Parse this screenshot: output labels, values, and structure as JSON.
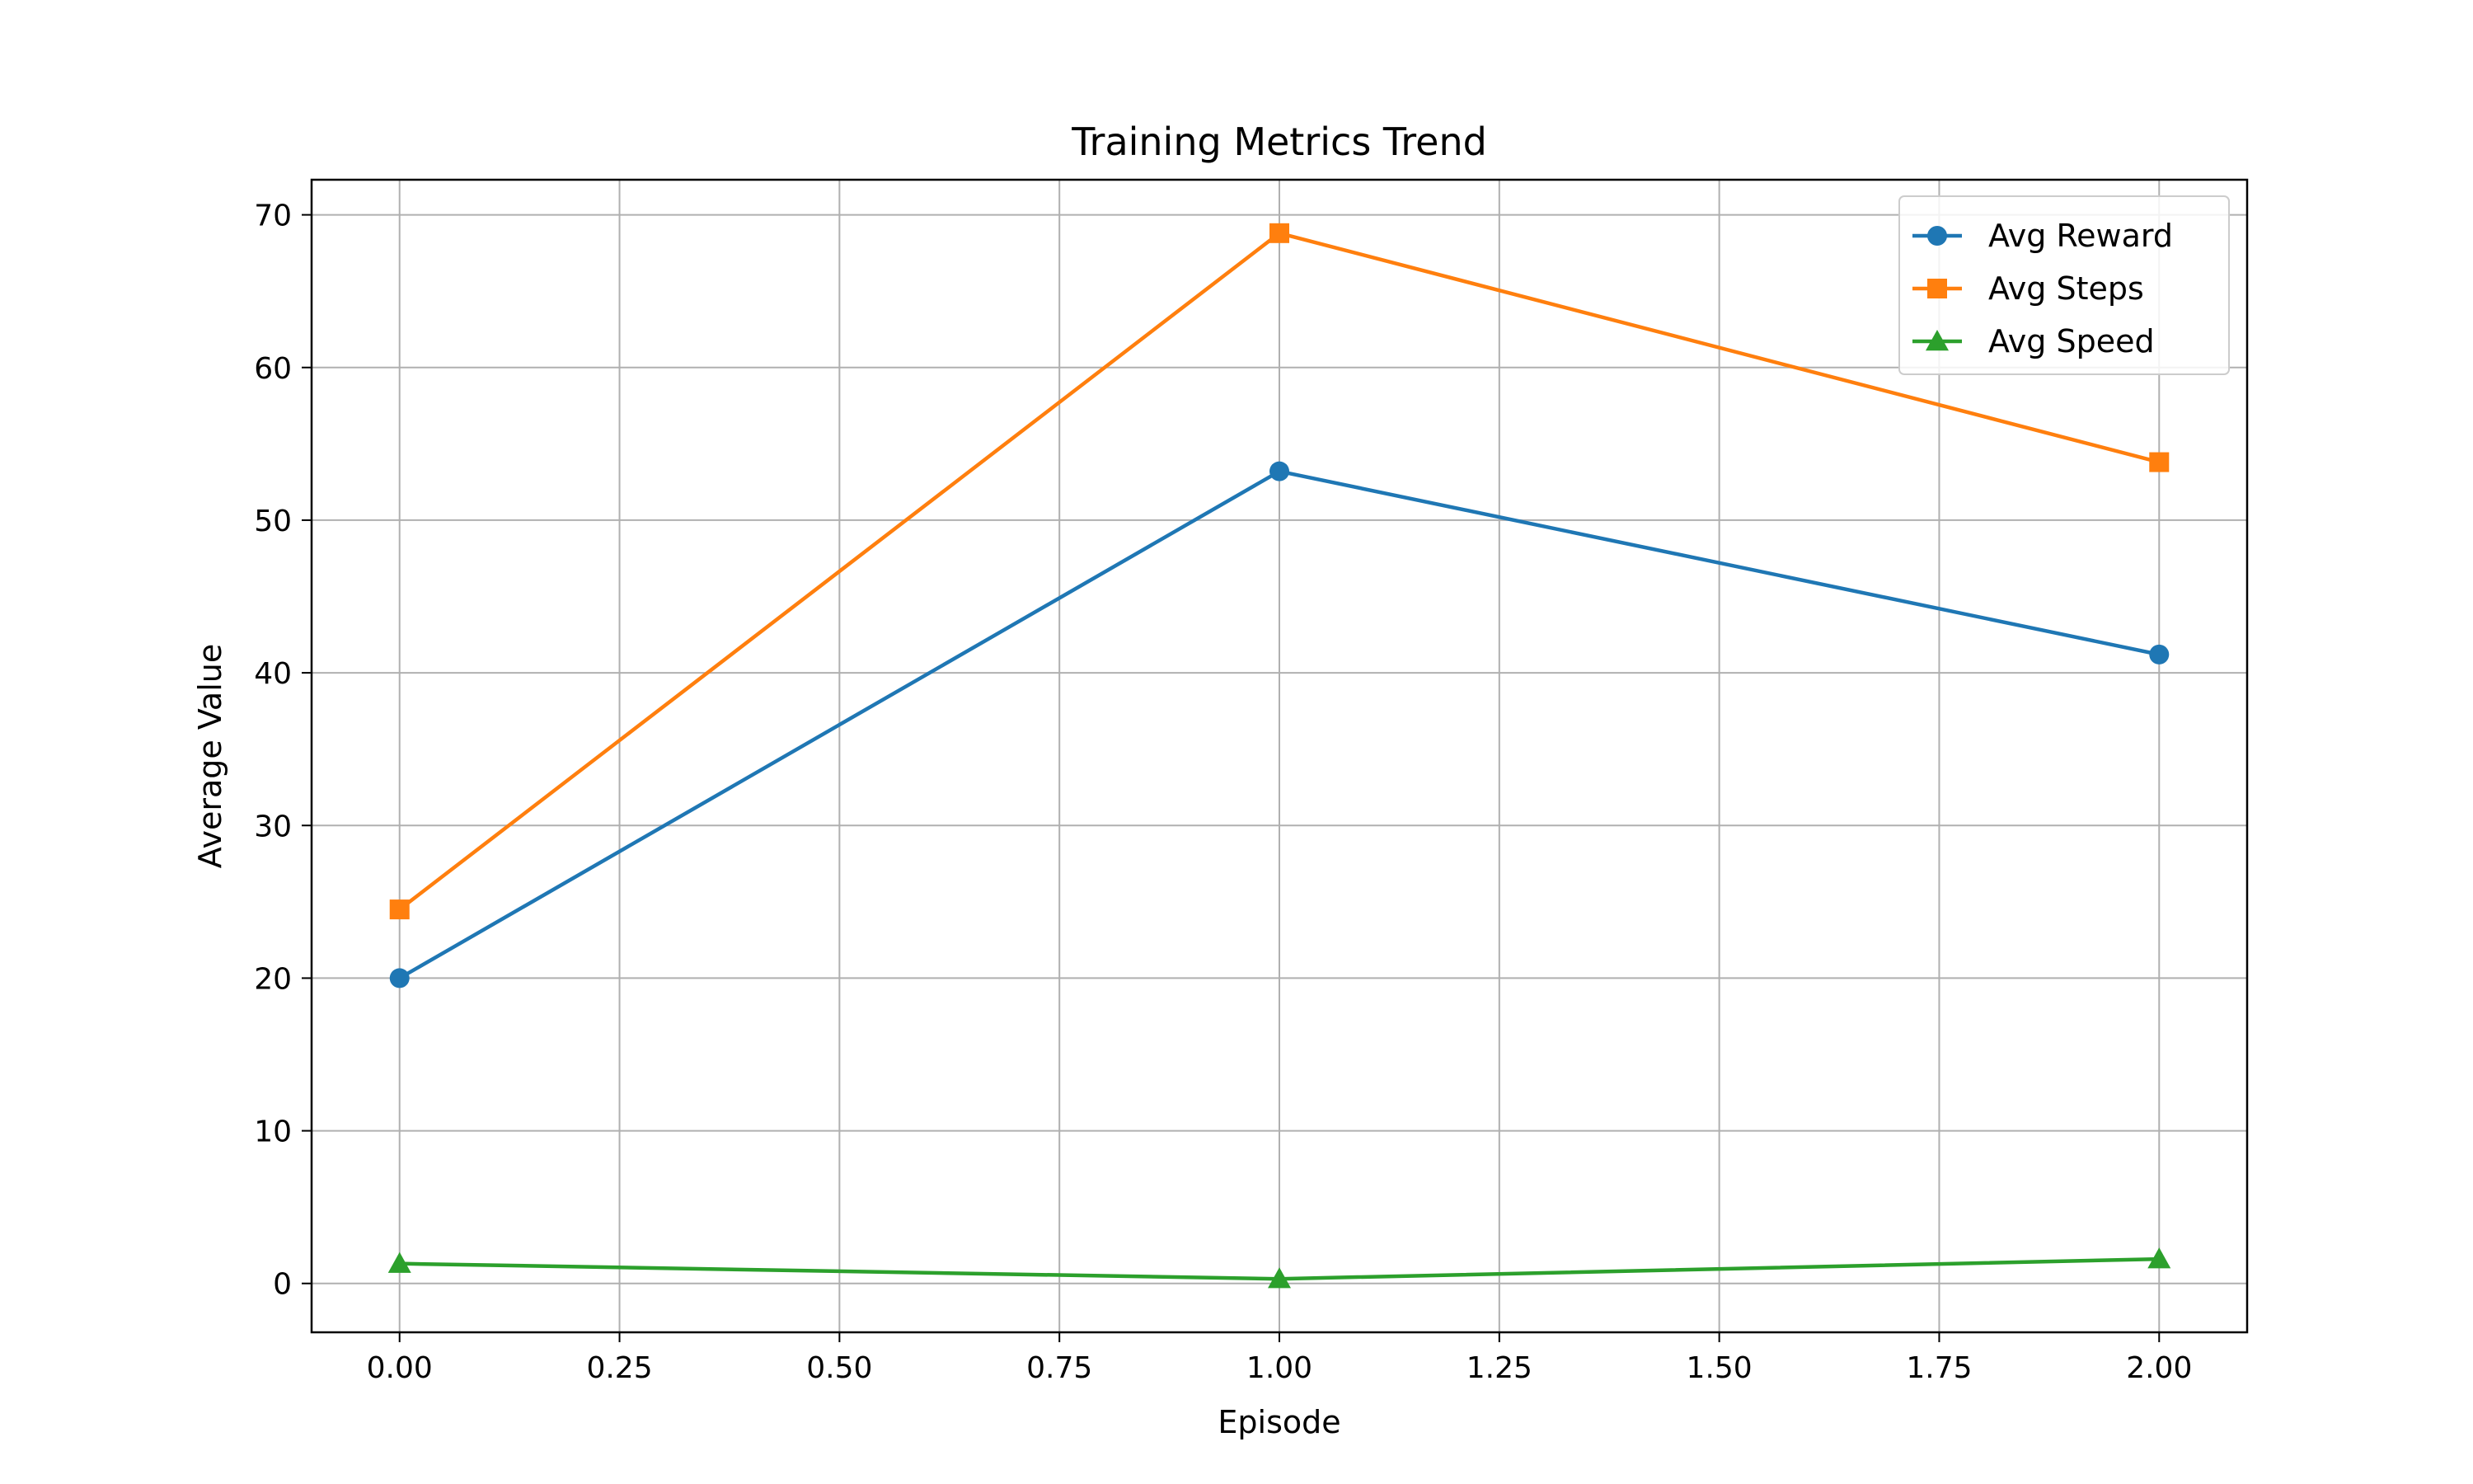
{
  "chart_data": {
    "type": "line",
    "title": "Training Metrics Trend",
    "xlabel": "Episode",
    "ylabel": "Average Value",
    "x": [
      0,
      1,
      2
    ],
    "xlim": [
      -0.1,
      2.1
    ],
    "ylim": [
      -3.2,
      72.3
    ],
    "xticks": [
      0.0,
      0.25,
      0.5,
      0.75,
      1.0,
      1.25,
      1.5,
      1.75,
      2.0
    ],
    "xtick_labels": [
      "0.00",
      "0.25",
      "0.50",
      "0.75",
      "1.00",
      "1.25",
      "1.50",
      "1.75",
      "2.00"
    ],
    "yticks": [
      0,
      10,
      20,
      30,
      40,
      50,
      60,
      70
    ],
    "ytick_labels": [
      "0",
      "10",
      "20",
      "30",
      "40",
      "50",
      "60",
      "70"
    ],
    "grid": true,
    "legend_position": "top-right",
    "series": [
      {
        "name": "Avg Reward",
        "values": [
          20.0,
          53.2,
          41.2
        ],
        "color": "#1f77b4",
        "marker": "circle"
      },
      {
        "name": "Avg Steps",
        "values": [
          24.5,
          68.8,
          53.8
        ],
        "color": "#ff7f0e",
        "marker": "square"
      },
      {
        "name": "Avg Speed",
        "values": [
          1.3,
          0.3,
          1.6
        ],
        "color": "#2ca02c",
        "marker": "triangle"
      }
    ]
  }
}
